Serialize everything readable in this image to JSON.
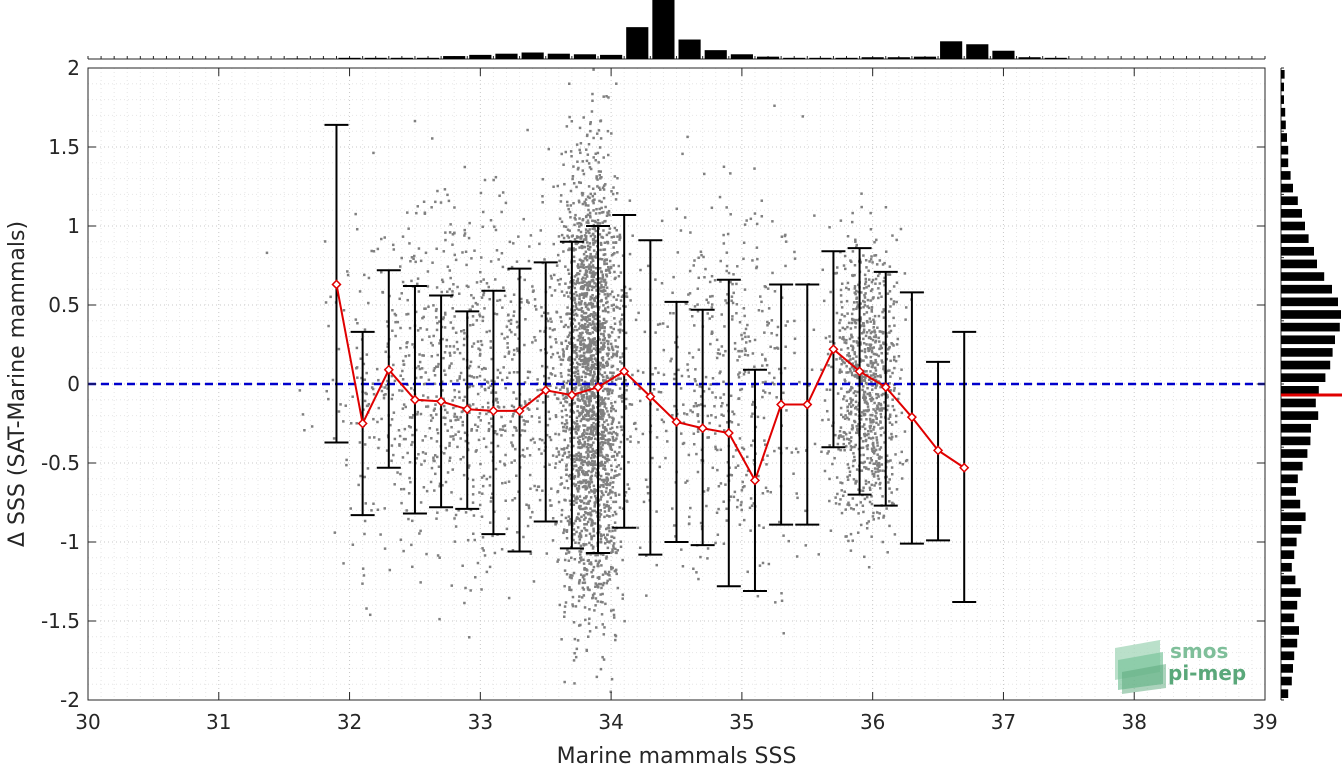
{
  "chart_data": {
    "type": "scatter",
    "title": "",
    "xlabel": "Marine mammals SSS",
    "ylabel": "Δ SSS (SAT-Marine mammals)",
    "xlim": [
      30,
      39
    ],
    "ylim": [
      -2,
      2
    ],
    "xticks": [
      30,
      31,
      32,
      33,
      34,
      35,
      36,
      37,
      38,
      39
    ],
    "yticks": [
      -2,
      -1.5,
      -1,
      -0.5,
      0,
      0.5,
      1,
      1.5,
      2
    ],
    "ytick_labels": [
      "-2",
      "-1.5",
      "-1",
      "-0.5",
      "0",
      "0.5",
      "1",
      "1.5",
      "2"
    ],
    "grid": true,
    "zero_line": {
      "y": 0,
      "color": "#0000cc",
      "style": "dashed"
    },
    "scatter_color": "#808080",
    "scatter_clusters": [
      {
        "x_center": 33.85,
        "x_spread": 0.12,
        "y_spread": 0.75,
        "count": 2200
      },
      {
        "x_center": 35.95,
        "x_spread": 0.13,
        "y_spread": 0.45,
        "count": 900
      },
      {
        "x_center": 33.0,
        "x_spread": 0.55,
        "y_spread": 0.6,
        "count": 1100
      },
      {
        "x_center": 34.9,
        "x_spread": 0.35,
        "y_spread": 0.6,
        "count": 500
      }
    ],
    "binned_stats": {
      "name": "",
      "color": "#e00000",
      "x": [
        31.9,
        32.1,
        32.3,
        32.5,
        32.7,
        32.9,
        33.1,
        33.3,
        33.5,
        33.7,
        33.9,
        34.1,
        34.3,
        34.5,
        34.7,
        34.9,
        35.1,
        35.3,
        35.5,
        35.7,
        35.9,
        36.1,
        36.3,
        36.5,
        36.7
      ],
      "mean": [
        0.63,
        -0.25,
        0.09,
        -0.1,
        -0.11,
        -0.16,
        -0.17,
        -0.17,
        -0.04,
        -0.07,
        -0.02,
        0.08,
        -0.08,
        -0.24,
        -0.28,
        -0.31,
        -0.61,
        -0.13,
        -0.13,
        0.22,
        0.08,
        -0.02,
        -0.21,
        -0.42,
        -0.53
      ],
      "err_low": [
        -0.37,
        -0.83,
        -0.53,
        -0.82,
        -0.78,
        -0.79,
        -0.95,
        -1.06,
        -0.87,
        -1.04,
        -1.07,
        -0.91,
        -1.08,
        -1.0,
        -1.02,
        -1.28,
        -1.31,
        -0.89,
        -0.89,
        -0.4,
        -0.7,
        -0.77,
        -1.01,
        -0.99,
        -1.38
      ],
      "err_high": [
        1.64,
        0.33,
        0.72,
        0.62,
        0.56,
        0.46,
        0.59,
        0.73,
        0.77,
        0.9,
        1.0,
        1.07,
        0.91,
        0.52,
        0.47,
        0.66,
        0.09,
        0.63,
        0.63,
        0.84,
        0.86,
        0.71,
        0.58,
        0.14,
        0.33
      ]
    },
    "top_histogram": {
      "color": "#000000",
      "values": [
        0.01,
        0.01,
        0.02,
        0.02,
        0.02,
        0.02,
        0.05,
        0.07,
        0.09,
        0.11,
        0.09,
        0.08,
        0.07,
        0.54,
        1.0,
        0.33,
        0.15,
        0.08,
        0.04,
        0.02,
        0.02,
        0.02,
        0.03,
        0.03,
        0.04,
        0.3,
        0.25,
        0.14,
        0.03,
        0.02
      ]
    },
    "right_histogram": {
      "color": "#000000",
      "median_line_color": "#e00000",
      "median_value": -0.07,
      "values": [
        0.06,
        0.05,
        0.05,
        0.07,
        0.08,
        0.1,
        0.12,
        0.12,
        0.16,
        0.2,
        0.28,
        0.35,
        0.4,
        0.46,
        0.55,
        0.6,
        0.72,
        0.85,
        0.95,
        1.0,
        0.98,
        0.9,
        0.86,
        0.82,
        0.74,
        0.63,
        0.58,
        0.62,
        0.5,
        0.49,
        0.44,
        0.36,
        0.28,
        0.25,
        0.32,
        0.41,
        0.34,
        0.26,
        0.22,
        0.18,
        0.24,
        0.33,
        0.27,
        0.22,
        0.3,
        0.27,
        0.22,
        0.2,
        0.18,
        0.12
      ]
    }
  },
  "logo": {
    "line1": "smos",
    "line2": "pi-mep",
    "color": "#5aa87a"
  }
}
